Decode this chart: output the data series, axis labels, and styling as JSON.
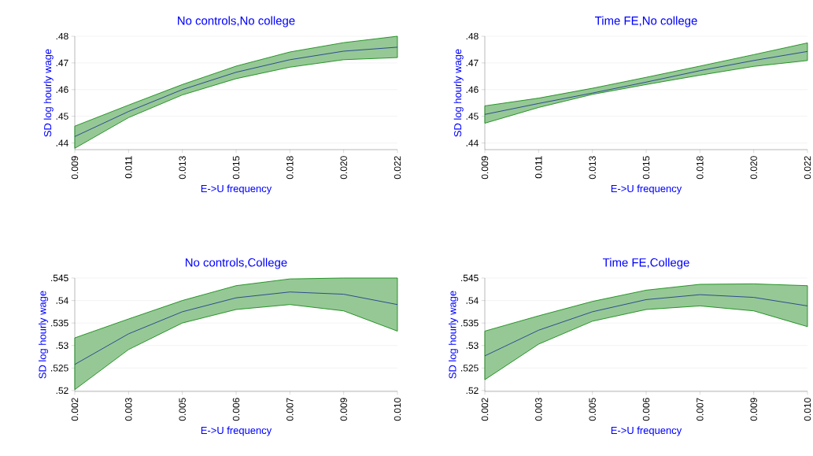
{
  "chart_data": [
    {
      "type": "line",
      "title": "No controls,No college",
      "xlabel": "E->U frequency",
      "ylabel": "SD log hourly wage",
      "grid": "y",
      "categories": [
        "0.009",
        "0.011",
        "0.013",
        "0.015",
        "0.018",
        "0.020",
        "0.022"
      ],
      "series": [
        {
          "color": "#1f3f8f",
          "values": [
            0.4424,
            0.4518,
            0.46,
            0.4665,
            0.4712,
            0.4744,
            0.4759
          ],
          "lower": [
            0.438,
            0.4495,
            0.458,
            0.4641,
            0.4684,
            0.4712,
            0.472
          ],
          "upper": [
            0.4463,
            0.4542,
            0.4619,
            0.4688,
            0.4741,
            0.4776,
            0.48
          ]
        }
      ],
      "ylim": [
        0.4375,
        0.48
      ],
      "yticks": [
        {
          "value": 0.44,
          "label": ".44"
        },
        {
          "value": 0.45,
          "label": ".45"
        },
        {
          "value": 0.46,
          "label": ".46"
        },
        {
          "value": 0.47,
          "label": ".47"
        },
        {
          "value": 0.48,
          "label": ".48"
        }
      ]
    },
    {
      "type": "line",
      "title": "Time FE,No college",
      "xlabel": "E->U frequency",
      "ylabel": "SD log hourly wage",
      "grid": "y",
      "categories": [
        "0.009",
        "0.011",
        "0.013",
        "0.015",
        "0.018",
        "0.020",
        "0.022"
      ],
      "series": [
        {
          "color": "#1f3f8f",
          "values": [
            0.4507,
            0.4548,
            0.4587,
            0.4628,
            0.4671,
            0.4709,
            0.4743
          ],
          "lower": [
            0.4474,
            0.4533,
            0.4582,
            0.4619,
            0.4654,
            0.4687,
            0.4709
          ],
          "upper": [
            0.4539,
            0.4568,
            0.4605,
            0.4646,
            0.4688,
            0.4731,
            0.4775
          ]
        }
      ],
      "ylim": [
        0.4375,
        0.48
      ],
      "yticks": [
        {
          "value": 0.44,
          "label": ".44"
        },
        {
          "value": 0.45,
          "label": ".45"
        },
        {
          "value": 0.46,
          "label": ".46"
        },
        {
          "value": 0.47,
          "label": ".47"
        },
        {
          "value": 0.48,
          "label": ".48"
        }
      ]
    },
    {
      "type": "line",
      "title": "No controls,College",
      "xlabel": "E->U frequency",
      "ylabel": "SD log hourly wage",
      "grid": "y",
      "categories": [
        "0.002",
        "0.003",
        "0.005",
        "0.006",
        "0.007",
        "0.009",
        "0.010"
      ],
      "series": [
        {
          "color": "#1f3f8f",
          "values": [
            0.5258,
            0.5326,
            0.5375,
            0.5406,
            0.5419,
            0.5414,
            0.5391
          ],
          "lower": [
            0.5202,
            0.5291,
            0.535,
            0.538,
            0.5391,
            0.5377,
            0.5332
          ],
          "upper": [
            0.5317,
            0.5359,
            0.54,
            0.5433,
            0.5448,
            0.545,
            0.545
          ]
        }
      ],
      "ylim": [
        0.5198,
        0.545
      ],
      "yticks": [
        {
          "value": 0.52,
          "label": ".52"
        },
        {
          "value": 0.525,
          "label": ".525"
        },
        {
          "value": 0.53,
          "label": ".53"
        },
        {
          "value": 0.535,
          "label": ".535"
        },
        {
          "value": 0.54,
          "label": ".54"
        },
        {
          "value": 0.545,
          "label": ".545"
        }
      ]
    },
    {
      "type": "line",
      "title": "Time FE,College",
      "xlabel": "E->U frequency",
      "ylabel": "SD log hourly wage",
      "grid": "y",
      "categories": [
        "0.002",
        "0.003",
        "0.005",
        "0.006",
        "0.007",
        "0.009",
        "0.010"
      ],
      "series": [
        {
          "color": "#1f3f8f",
          "values": [
            0.5277,
            0.5334,
            0.5375,
            0.5402,
            0.5413,
            0.5407,
            0.5388
          ],
          "lower": [
            0.5224,
            0.5303,
            0.5354,
            0.538,
            0.5388,
            0.5377,
            0.5342
          ],
          "upper": [
            0.5332,
            0.5366,
            0.5398,
            0.5423,
            0.5436,
            0.5437,
            0.5433
          ]
        }
      ],
      "ylim": [
        0.5198,
        0.545
      ],
      "yticks": [
        {
          "value": 0.52,
          "label": ".52"
        },
        {
          "value": 0.525,
          "label": ".525"
        },
        {
          "value": 0.53,
          "label": ".53"
        },
        {
          "value": 0.535,
          "label": ".535"
        },
        {
          "value": 0.54,
          "label": ".54"
        },
        {
          "value": 0.545,
          "label": ".545"
        }
      ]
    }
  ]
}
